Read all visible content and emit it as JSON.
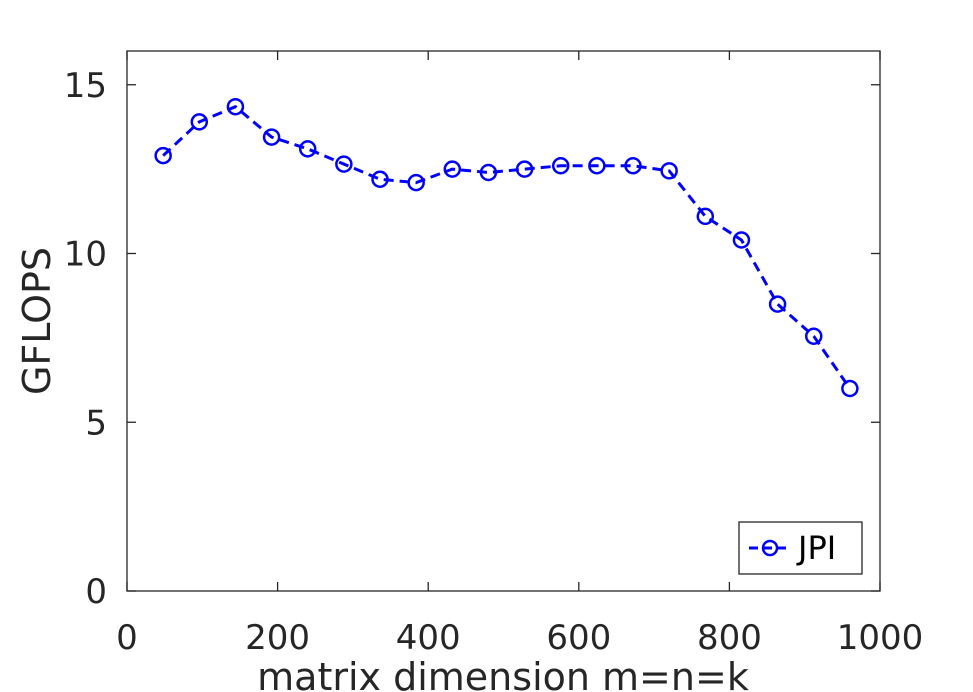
{
  "chart_data": {
    "type": "line",
    "title": "",
    "xlabel": "matrix dimension m=n=k",
    "ylabel": "GFLOPS",
    "xlim": [
      0,
      1000
    ],
    "ylim": [
      0,
      16
    ],
    "xticks": [
      0,
      200,
      400,
      600,
      800,
      1000
    ],
    "xtick_labels": [
      "0",
      "200",
      "400",
      "600",
      "800",
      "1000"
    ],
    "yticks": [
      0,
      5,
      10,
      15
    ],
    "ytick_labels": [
      "0",
      "5",
      "10",
      "15"
    ],
    "grid": false,
    "legend_position": "bottom-right",
    "series": [
      {
        "name": "JPI",
        "color": "#0000ff",
        "line_style": "dashed",
        "marker": "circle",
        "x": [
          48,
          96,
          144,
          192,
          240,
          288,
          336,
          384,
          432,
          480,
          528,
          576,
          624,
          672,
          720,
          768,
          816,
          864,
          912,
          960
        ],
        "y": [
          12.9,
          13.9,
          14.35,
          13.45,
          13.1,
          12.65,
          12.2,
          12.1,
          12.5,
          12.4,
          12.5,
          12.6,
          12.6,
          12.6,
          12.45,
          11.1,
          10.4,
          8.5,
          7.55,
          6.0
        ]
      }
    ]
  }
}
